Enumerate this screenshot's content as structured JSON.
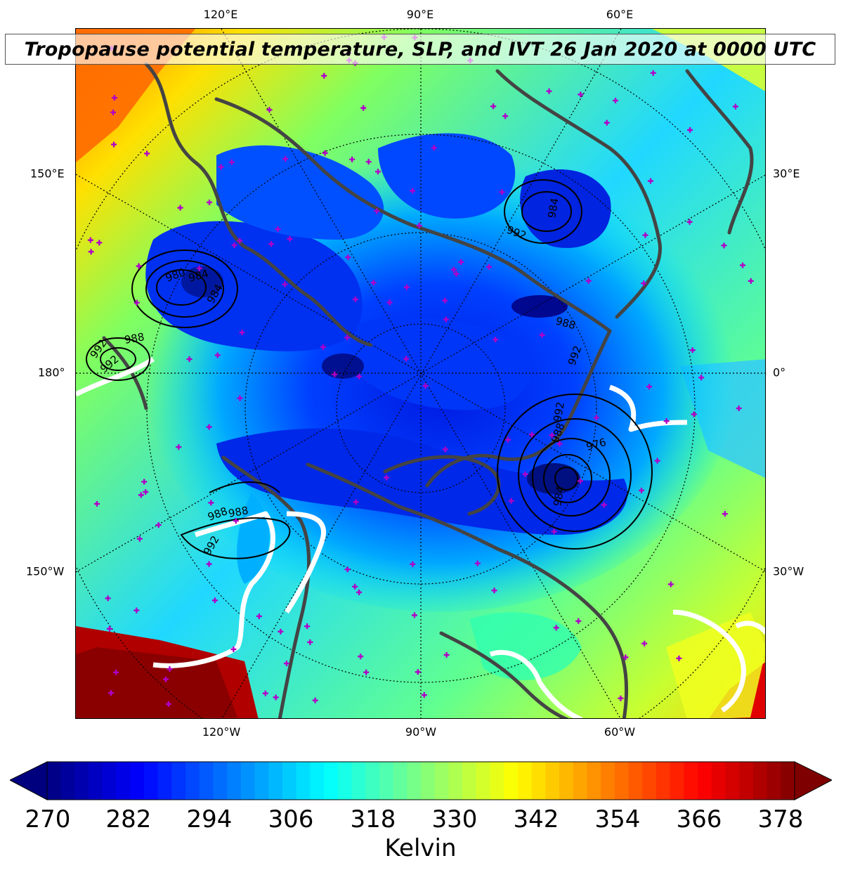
{
  "title": "Tropopause potential temperature, SLP, and IVT 26 Jan 2020 at 0000 UTC",
  "map": {
    "projection": "north-polar",
    "lon_labels_top": [
      "120°E",
      "90°E",
      "60°E"
    ],
    "lon_labels_bottom": [
      "120°W",
      "90°W",
      "60°W"
    ],
    "lat_labels_left": [
      "150°E",
      "180°",
      "150°W"
    ],
    "lat_labels_right": [
      "30°E",
      "0°",
      "30°W"
    ],
    "slp_contour_labels": [
      "992",
      "988",
      "992",
      "980",
      "984",
      "984",
      "992",
      "984",
      "988",
      "992",
      "992",
      "988",
      "976",
      "984",
      "988",
      "988",
      "992"
    ],
    "colors": {
      "slp_contours": "#000000",
      "ivt_contours": "#ffffff",
      "coastlines": "#444444",
      "station_markers": "#b000c8"
    }
  },
  "colorbar": {
    "ticks": [
      "270",
      "282",
      "294",
      "306",
      "318",
      "330",
      "342",
      "354",
      "366",
      "378"
    ],
    "label": "Kelvin",
    "colormap": "jet",
    "extend": "both"
  }
}
